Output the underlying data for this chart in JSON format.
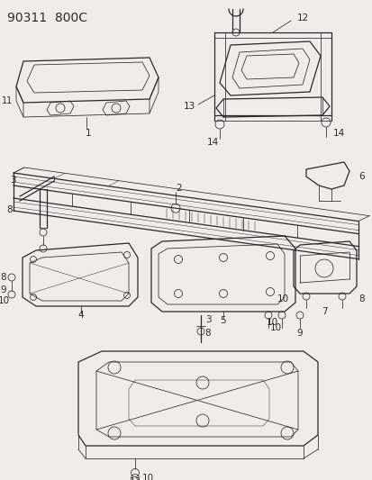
{
  "title": "90311  800C",
  "bg": "#f0ede8",
  "lc": "#2a2a2a",
  "title_fs": 10,
  "label_fs": 7.5,
  "fig_w": 4.14,
  "fig_h": 5.33,
  "dpi": 100
}
